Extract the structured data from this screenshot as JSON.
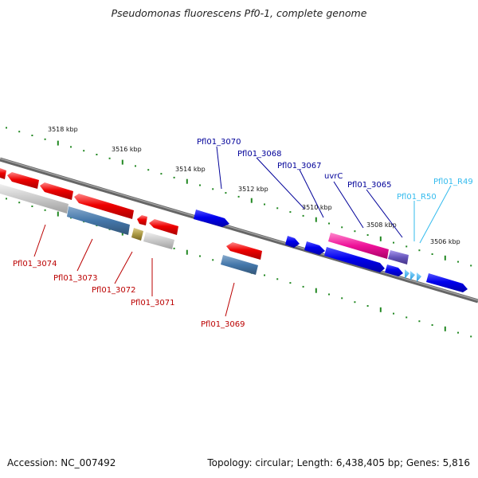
{
  "title": "Pseudomonas fluorescens Pf0-1, complete genome",
  "footer": {
    "accession": "Accession: NC_007492",
    "stats": "Topology: circular; Length: 6,438,405 bp; Genes: 5,816"
  },
  "colors": {
    "forward_gene": "#0000ee",
    "reverse_gene": "#ee0000",
    "forward_label": "#000099",
    "reverse_label": "#bb0000",
    "rna_label": "#33bbee",
    "tick": "#228822"
  },
  "ruler": {
    "unit": "kbp",
    "labels": [
      "3518 kbp",
      "3516 kbp",
      "3514 kbp",
      "3512 kbp",
      "3510 kbp",
      "3508 kbp",
      "3506 kbp"
    ]
  },
  "gene_labels": [
    {
      "text": "Pfl01_3070",
      "strand": "forward"
    },
    {
      "text": "Pfl01_3068",
      "strand": "forward"
    },
    {
      "text": "Pfl01_3067",
      "strand": "forward"
    },
    {
      "text": "uvrC",
      "strand": "forward"
    },
    {
      "text": "Pfl01_3065",
      "strand": "forward"
    },
    {
      "text": "Pfl01_R50",
      "strand": "rna"
    },
    {
      "text": "Pfl01_R49",
      "strand": "rna"
    },
    {
      "text": "Pfl01_3074",
      "strand": "reverse"
    },
    {
      "text": "Pfl01_3073",
      "strand": "reverse"
    },
    {
      "text": "Pfl01_3072",
      "strand": "reverse"
    },
    {
      "text": "Pfl01_3071",
      "strand": "reverse"
    },
    {
      "text": "Pfl01_3069",
      "strand": "reverse"
    }
  ]
}
